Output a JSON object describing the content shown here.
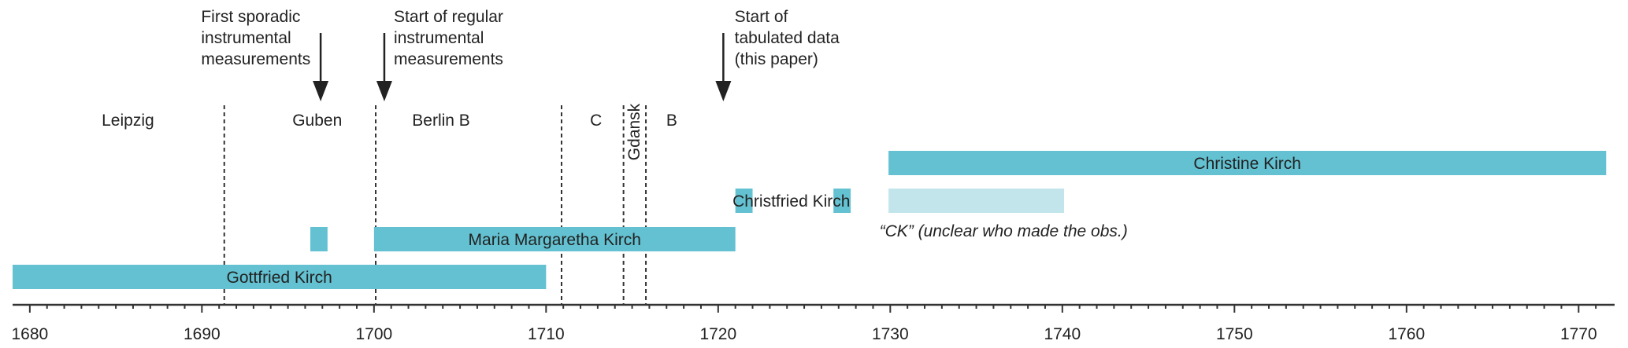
{
  "timeline": {
    "axis": {
      "min": 1679,
      "max": 1772,
      "ticks": [
        1680,
        1690,
        1700,
        1710,
        1720,
        1730,
        1740,
        1750,
        1760,
        1770
      ]
    },
    "dividers": [
      1691.3,
      1700.1,
      1710.9,
      1714.5,
      1715.8
    ],
    "locations": [
      {
        "label": "Leipzig",
        "x": 1685.7,
        "rotated": false
      },
      {
        "label": "Guben",
        "x": 1696.7,
        "rotated": false
      },
      {
        "label": "Berlin B",
        "x": 1703.9,
        "rotated": false
      },
      {
        "label": "C",
        "x": 1712.9,
        "rotated": false
      },
      {
        "label": "Gdansk",
        "x": 1715.1,
        "rotated": true
      },
      {
        "label": "B",
        "x": 1717.3,
        "rotated": false
      }
    ],
    "annotations": [
      {
        "lines": [
          "First sporadic",
          "instrumental",
          "measurements"
        ],
        "x": 1696.9,
        "text_x": 1690.0
      },
      {
        "lines": [
          "Start of regular",
          "instrumental",
          "measurements"
        ],
        "x": 1700.6,
        "text_x": 1701.2
      },
      {
        "lines": [
          "Start of",
          "tabulated data",
          "(this paper)"
        ],
        "x": 1720.3,
        "text_x": 1721.0
      }
    ],
    "periods": [
      {
        "name": "Gottfried Kirch",
        "start": 1679.0,
        "end": 1710.0,
        "row": 0,
        "style": "main"
      },
      {
        "name": "Maria Margaretha Kirch",
        "start": 1700.0,
        "end": 1721.0,
        "row": 1,
        "style": "main"
      },
      {
        "name": "",
        "start": 1696.3,
        "end": 1697.3,
        "row": 1,
        "style": "main"
      },
      {
        "name": "Christfried Kirch",
        "start": 1721.0,
        "end": 1722.0,
        "row": 2,
        "style": "main"
      },
      {
        "name": "",
        "start": 1726.7,
        "end": 1727.7,
        "row": 2,
        "style": "main"
      },
      {
        "name": "",
        "start": 1729.9,
        "end": 1740.1,
        "row": 2,
        "style": "light"
      },
      {
        "name": "Christine Kirch",
        "start": 1729.9,
        "end": 1771.6,
        "row": 3,
        "style": "main"
      }
    ],
    "christfried_label": "Christfried Kirch",
    "ck_note": "“CK” (unclear who made the obs.)",
    "colors": {
      "main": "#63c1d1",
      "light": "#c2e5ec",
      "axis": "#333333",
      "text": "#222222"
    }
  }
}
